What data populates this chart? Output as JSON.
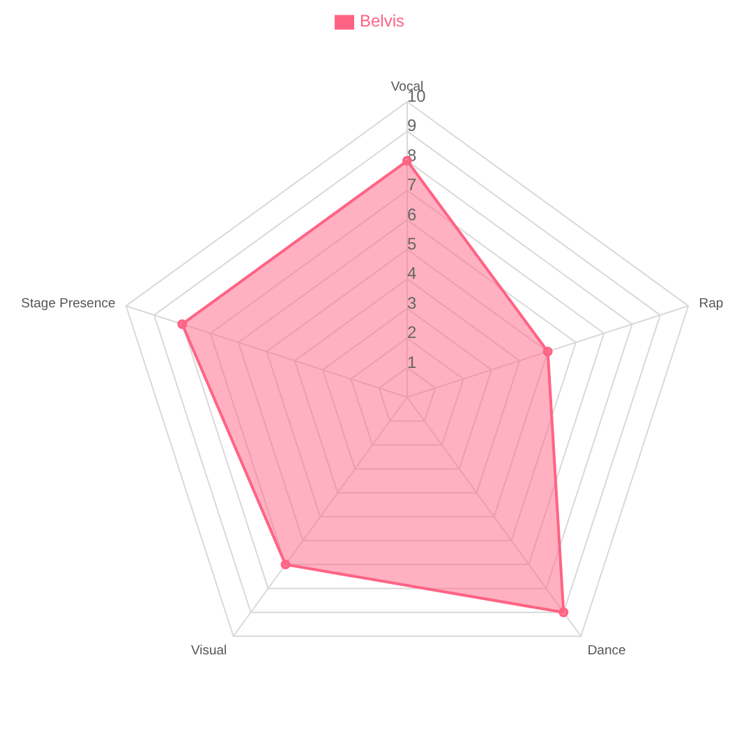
{
  "chart_data": {
    "type": "radar",
    "categories": [
      "Vocal",
      "Rap",
      "Dance",
      "Visual",
      "Stage Presence"
    ],
    "series": [
      {
        "name": "Belvis",
        "color": "#ff6384",
        "values": [
          8,
          5,
          9,
          7,
          8
        ]
      }
    ],
    "ylim": [
      0,
      10
    ],
    "yticks": [
      1,
      2,
      3,
      4,
      5,
      6,
      7,
      8,
      9,
      10
    ],
    "grid": true,
    "legend": "top",
    "marker": "circle"
  }
}
